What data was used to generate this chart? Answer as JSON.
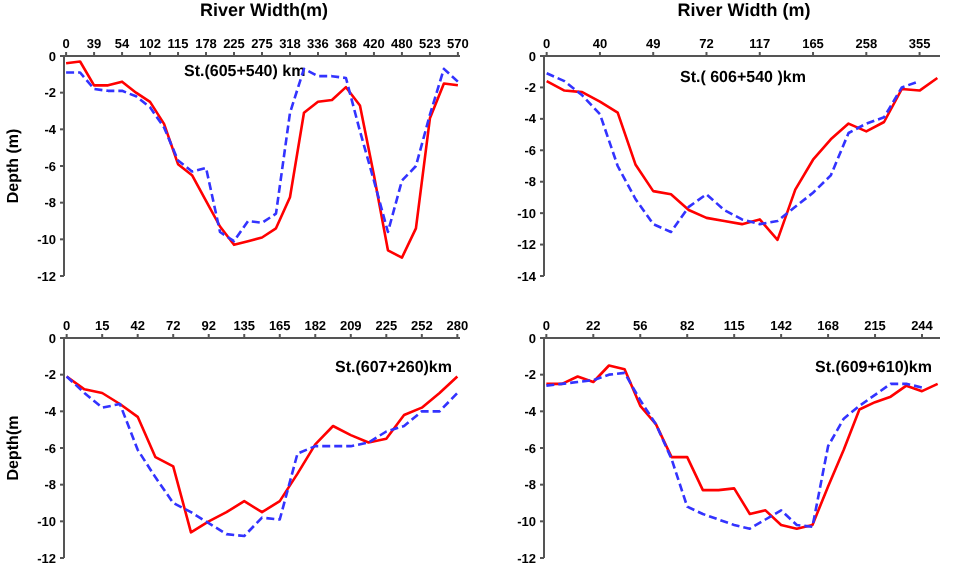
{
  "chart_data": [
    {
      "type": "line",
      "xlabel": "River Width(m)",
      "ylabel": "Depth (m)",
      "annotations": [
        "St.(605+540) km"
      ],
      "categories": [
        "0",
        null,
        "39",
        null,
        "54",
        null,
        "102",
        null,
        "115",
        null,
        "178",
        null,
        "225",
        null,
        "275",
        null,
        "318",
        null,
        "336",
        null,
        "368",
        null,
        "420",
        null,
        "480",
        null,
        "523",
        null,
        "570"
      ],
      "ylim": [
        -12,
        0
      ],
      "yticks": [
        0,
        -2,
        -4,
        -6,
        -8,
        -10,
        -12
      ],
      "series": [
        {
          "color": "#ff0000",
          "line_style": "solid",
          "values": [
            -0.4,
            -0.3,
            -1.6,
            -1.6,
            -1.4,
            -2.0,
            -2.5,
            -3.7,
            -5.9,
            -6.5,
            -7.9,
            -9.3,
            -10.3,
            -10.1,
            -9.9,
            -9.4,
            -7.7,
            -3.1,
            -2.5,
            -2.4,
            -1.7,
            -2.7,
            -6.5,
            -10.6,
            -11.0,
            -9.4,
            -3.4,
            -1.5,
            -1.6
          ]
        },
        {
          "color": "#3333ff",
          "line_style": "dashed",
          "values": [
            -0.9,
            -0.9,
            -1.8,
            -1.9,
            -1.9,
            -2.2,
            -2.8,
            -3.9,
            -5.7,
            -6.3,
            -6.1,
            -9.6,
            -10.1,
            -9.0,
            -9.1,
            -8.6,
            -3.1,
            -0.7,
            -1.1,
            -1.1,
            -1.2,
            -4.1,
            -6.8,
            -9.6,
            -6.8,
            -6.0,
            -3.2,
            -0.7,
            -1.4
          ]
        }
      ]
    },
    {
      "type": "line",
      "xlabel": "River Width  (m)",
      "annotations": [
        "St.( 606+540 )km"
      ],
      "categories": [
        "0",
        null,
        null,
        "40",
        null,
        null,
        "49",
        null,
        null,
        "72",
        null,
        null,
        "117",
        null,
        null,
        "165",
        null,
        null,
        "258",
        null,
        null,
        "355",
        null
      ],
      "ylim": [
        -14,
        0
      ],
      "yticks": [
        0,
        -2,
        -4,
        -6,
        -8,
        -10,
        -12,
        -14
      ],
      "series": [
        {
          "color": "#ff0000",
          "line_style": "solid",
          "values": [
            -1.6,
            -2.2,
            -2.3,
            -2.9,
            -3.6,
            -6.9,
            -8.6,
            -8.8,
            -9.8,
            -10.3,
            -10.5,
            -10.7,
            -10.4,
            -11.7,
            -8.5,
            -6.6,
            -5.3,
            -4.3,
            -4.8,
            -4.2,
            -2.1,
            -2.2,
            -1.4
          ]
        },
        {
          "color": "#3333ff",
          "line_style": "dashed",
          "values": [
            -1.1,
            -1.6,
            -2.5,
            -3.7,
            -7.0,
            -9.1,
            -10.7,
            -11.2,
            -9.6,
            -8.8,
            -9.8,
            -10.4,
            -10.7,
            -10.5,
            -9.6,
            -8.7,
            -7.6,
            -4.9,
            -4.3,
            -3.9,
            -2.0,
            -1.6,
            null
          ]
        }
      ]
    },
    {
      "type": "line",
      "ylabel": "Depth(m",
      "annotations": [
        "St.(607+260)km"
      ],
      "categories": [
        "0",
        null,
        "15",
        null,
        "42",
        null,
        "72",
        null,
        "92",
        null,
        "135",
        null,
        "165",
        null,
        "182",
        null,
        "209",
        null,
        "225",
        null,
        "252",
        null,
        "280"
      ],
      "ylim": [
        -12,
        0
      ],
      "yticks": [
        0,
        -2,
        -4,
        -6,
        -8,
        -10,
        -12
      ],
      "series": [
        {
          "color": "#ff0000",
          "line_style": "solid",
          "values": [
            -2.1,
            -2.8,
            -3.0,
            -3.6,
            -4.3,
            -6.5,
            -7.0,
            -10.6,
            -10.0,
            -9.5,
            -8.9,
            -9.5,
            -8.9,
            -7.4,
            -5.8,
            -4.8,
            -5.3,
            -5.7,
            -5.5,
            -4.2,
            -3.8,
            -3.0,
            -2.1
          ]
        },
        {
          "color": "#3333ff",
          "line_style": "dashed",
          "values": [
            -2.1,
            -3.0,
            -3.8,
            -3.6,
            -6.1,
            -7.6,
            -9.0,
            -9.5,
            -10.1,
            -10.7,
            -10.8,
            -9.8,
            -9.9,
            -6.3,
            -5.9,
            -5.9,
            -5.9,
            -5.7,
            -5.1,
            -4.8,
            -4.0,
            -4.0,
            -3.0
          ]
        }
      ]
    },
    {
      "type": "line",
      "annotations": [
        "St.(609+610)km"
      ],
      "categories": [
        "0",
        null,
        null,
        "22",
        null,
        null,
        "56",
        null,
        null,
        "82",
        null,
        null,
        "115",
        null,
        null,
        "142",
        null,
        null,
        "168",
        null,
        null,
        "215",
        null,
        null,
        "244",
        null
      ],
      "ylim": [
        -12,
        0
      ],
      "yticks": [
        0,
        -2,
        -4,
        -6,
        -8,
        -10,
        -12
      ],
      "series": [
        {
          "color": "#ff0000",
          "line_style": "solid",
          "values": [
            -2.5,
            -2.5,
            -2.1,
            -2.4,
            -1.5,
            -1.7,
            -3.7,
            -4.7,
            -6.5,
            -6.5,
            -8.3,
            -8.3,
            -8.2,
            -9.6,
            -9.4,
            -10.2,
            -10.4,
            -10.2,
            -8.1,
            -6.1,
            -3.9,
            -3.5,
            -3.2,
            -2.6,
            -2.9,
            -2.5
          ]
        },
        {
          "color": "#3333ff",
          "line_style": "dashed",
          "values": [
            -2.6,
            -2.5,
            -2.4,
            -2.3,
            -2.0,
            -1.9,
            -3.4,
            -4.7,
            -6.6,
            -9.2,
            -9.6,
            -9.9,
            -10.2,
            -10.4,
            -9.9,
            -9.4,
            -10.2,
            -10.3,
            -5.9,
            -4.4,
            -3.7,
            -3.1,
            -2.5,
            -2.5,
            -2.7,
            null
          ]
        }
      ]
    }
  ]
}
